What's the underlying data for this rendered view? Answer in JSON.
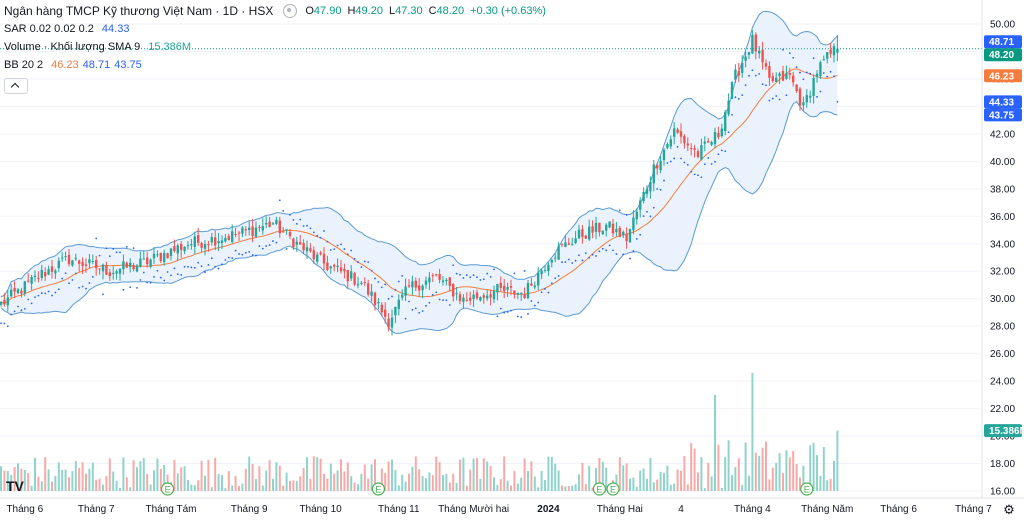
{
  "legend": {
    "title": "Ngân hàng TMCP Kỹ thương Việt Nam · 1D · HSX",
    "ohlc": [
      {
        "label": "O",
        "value": "47.90"
      },
      {
        "label": "H",
        "value": "49.20"
      },
      {
        "label": "L",
        "value": "47.30"
      },
      {
        "label": "C",
        "value": "48.20"
      },
      {
        "label": "",
        "value": "+0.30 (+0.63%)"
      }
    ],
    "sar": {
      "label": "SAR 0.02 0.02 0.2",
      "value": "44.33",
      "color": "#2962ff"
    },
    "volume": {
      "label": "Volume · Khối lượng SMA 9",
      "value": "15.386M",
      "color": "#26a69a"
    },
    "bb": {
      "label": "BB 20 2",
      "values": [
        {
          "value": "46.23",
          "color": "#f57c3d"
        },
        {
          "value": "48.71",
          "color": "#2962ff"
        },
        {
          "value": "43.75",
          "color": "#2962ff"
        }
      ]
    }
  },
  "price_axis": {
    "ticks": [
      "50.00",
      "48.00",
      "46.00",
      "44.00",
      "42.00",
      "40.00",
      "38.00",
      "36.00",
      "34.00",
      "32.00",
      "30.00",
      "28.00",
      "26.00",
      "24.00",
      "22.00",
      "20.00",
      "18.00",
      "16.00"
    ],
    "tags": [
      {
        "value": "48.71",
        "price": 48.71,
        "color": "#2962ff"
      },
      {
        "value": "48.20",
        "price": 48.2,
        "color": "#089981"
      },
      {
        "value": "46.23",
        "price": 46.23,
        "color": "#f57c3d"
      },
      {
        "value": "44.33",
        "price": 44.33,
        "color": "#2962ff"
      },
      {
        "value": "43.75",
        "price": 43.75,
        "color": "#2962ff"
      }
    ],
    "volume_tag": {
      "value": "15.386M",
      "color": "#26a69a"
    }
  },
  "time_axis": {
    "labels": [
      {
        "text": "Tháng 6",
        "bar": 7
      },
      {
        "text": "Tháng 7",
        "bar": 28
      },
      {
        "text": "Tháng Tám",
        "bar": 50
      },
      {
        "text": "Tháng 9",
        "bar": 73
      },
      {
        "text": "Tháng 10",
        "bar": 94
      },
      {
        "text": "Tháng 11",
        "bar": 117
      },
      {
        "text": "Tháng Mười hai",
        "bar": 139
      },
      {
        "text": "2024",
        "bar": 161
      },
      {
        "text": "Tháng Hai",
        "bar": 182
      },
      {
        "text": "4",
        "bar": 200
      },
      {
        "text": "Tháng 4",
        "bar": 221
      },
      {
        "text": "Tháng Năm",
        "bar": 243
      },
      {
        "text": "Tháng 6",
        "bar": 264
      },
      {
        "text": "Tháng 7",
        "bar": 286
      }
    ]
  },
  "markers": {
    "label": "E",
    "bars": [
      49,
      111,
      176,
      180,
      237
    ]
  },
  "colors": {
    "up": "#26a69a",
    "down": "#ef5350",
    "vol_up": "#8fd3cb",
    "vol_down": "#f7a9a7",
    "band_fill": "#eaf3fd",
    "band_line": "#5b9bd5",
    "basis": "#f57c3d",
    "sar": "#2962ff"
  },
  "chart_data": {
    "type": "candlestick",
    "title": "Ngân hàng TMCP Kỹ thương Việt Nam · 1D · HSX",
    "xlabel": "",
    "ylabel": "",
    "ylim": [
      15.5,
      51
    ],
    "last": {
      "open": 47.9,
      "high": 49.2,
      "low": 47.3,
      "close": 48.2,
      "change": 0.3,
      "change_pct": 0.63
    },
    "anchors": [
      {
        "bar": 0,
        "close": 29.6
      },
      {
        "bar": 12,
        "close": 31.8
      },
      {
        "bar": 20,
        "close": 32.9
      },
      {
        "bar": 32,
        "close": 32.0
      },
      {
        "bar": 42,
        "close": 32.6
      },
      {
        "bar": 55,
        "close": 34.0
      },
      {
        "bar": 68,
        "close": 34.6
      },
      {
        "bar": 80,
        "close": 35.5
      },
      {
        "bar": 88,
        "close": 33.8
      },
      {
        "bar": 96,
        "close": 32.4
      },
      {
        "bar": 106,
        "close": 31.2
      },
      {
        "bar": 114,
        "close": 28.4
      },
      {
        "bar": 120,
        "close": 30.8
      },
      {
        "bar": 128,
        "close": 31.6
      },
      {
        "bar": 136,
        "close": 29.9
      },
      {
        "bar": 146,
        "close": 30.6
      },
      {
        "bar": 154,
        "close": 30.4
      },
      {
        "bar": 162,
        "close": 33.2
      },
      {
        "bar": 170,
        "close": 34.6
      },
      {
        "bar": 178,
        "close": 35.3
      },
      {
        "bar": 184,
        "close": 34.4
      },
      {
        "bar": 192,
        "close": 39.5
      },
      {
        "bar": 198,
        "close": 42.2
      },
      {
        "bar": 205,
        "close": 40.5
      },
      {
        "bar": 211,
        "close": 42.0
      },
      {
        "bar": 216,
        "close": 46.2
      },
      {
        "bar": 221,
        "close": 48.8
      },
      {
        "bar": 226,
        "close": 45.8
      },
      {
        "bar": 232,
        "close": 46.2
      },
      {
        "bar": 236,
        "close": 43.9
      },
      {
        "bar": 240,
        "close": 46.6
      },
      {
        "bar": 244,
        "close": 47.8
      },
      {
        "bar": 246,
        "close": 48.2
      }
    ],
    "volume_spikes": [
      {
        "bar": 221,
        "value": 24.6
      },
      {
        "bar": 210,
        "value": 23.0
      }
    ],
    "bb": {
      "period": 20,
      "mult": 2,
      "basis": 46.23,
      "upper": 48.71,
      "lower": 43.75
    },
    "sar_last": 44.33,
    "volume_last": "15.386M"
  }
}
